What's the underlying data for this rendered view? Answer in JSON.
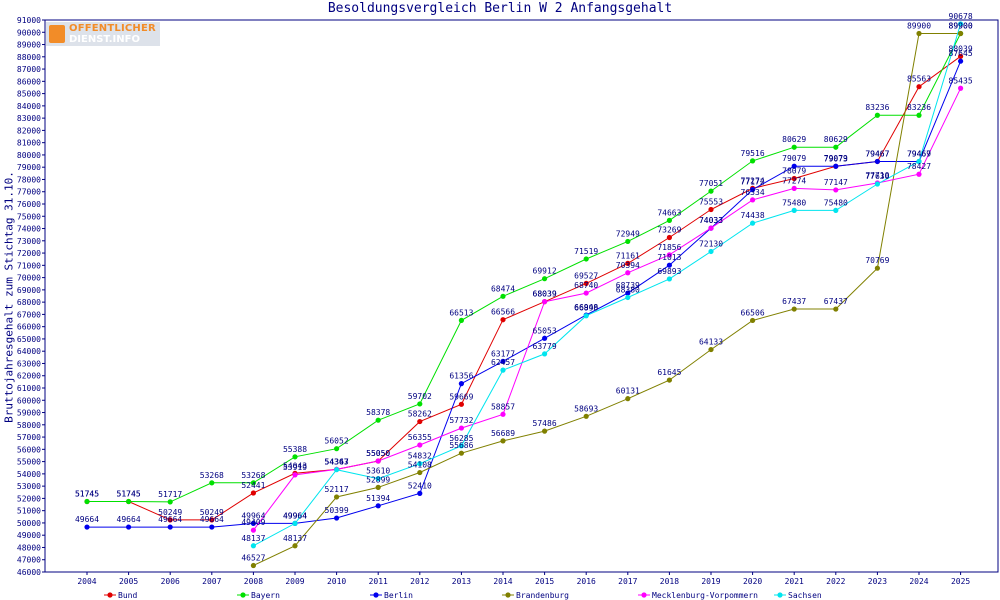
{
  "header": {
    "title": "Besoldungsvergleich Berlin W 2 Anfangsgehalt",
    "logo_line1": "OFFENTLICHER",
    "logo_line2": "DIENST.INFO"
  },
  "chart_data": {
    "type": "line",
    "title": "Besoldungsvergleich Berlin W 2 Anfangsgehalt",
    "xlabel": "",
    "ylabel": "Bruttojahresgehalt zum Stichtag 31.10.",
    "ylim": [
      46000,
      91000
    ],
    "ystep": 1000,
    "grid": false,
    "legend_position": "bottom",
    "categories": [
      "2004",
      "2005",
      "2006",
      "2007",
      "2008",
      "2009",
      "2010",
      "2011",
      "2012",
      "2013",
      "2014",
      "2015",
      "2016",
      "2017",
      "2018",
      "2019",
      "2020",
      "2021",
      "2022",
      "2023",
      "2024",
      "2025"
    ],
    "series": [
      {
        "name": "Bund",
        "color": "#e00000",
        "values": [
          51745,
          51745,
          50249,
          50249,
          52441,
          54043,
          54367,
          55050,
          58262,
          59669,
          66566,
          68039,
          69527,
          71161,
          73269,
          75553,
          77274,
          78079,
          79073,
          79467,
          85563,
          88039
        ]
      },
      {
        "name": "Bayern",
        "color": "#00e000",
        "values": [
          51745,
          51745,
          51717,
          53268,
          53268,
          55388,
          56052,
          58378,
          59702,
          66513,
          68474,
          69912,
          71519,
          72949,
          74663,
          77051,
          79516,
          80629,
          80629,
          83236,
          83236,
          89900
        ]
      },
      {
        "name": "Berlin",
        "color": "#0000ee",
        "values": [
          49664,
          49664,
          49664,
          49664,
          49964,
          49964,
          50399,
          51394,
          52410,
          61356,
          63177,
          65053,
          66948,
          68739,
          71013,
          74033,
          77172,
          79079,
          79079,
          79467,
          79467,
          87645
        ]
      },
      {
        "name": "Brandenburg",
        "color": "#808000",
        "values": [
          null,
          null,
          null,
          null,
          46527,
          48137,
          52117,
          52899,
          54108,
          55686,
          56689,
          57486,
          58693,
          60131,
          61645,
          64133,
          66506,
          67437,
          67437,
          70769,
          89900,
          89900
        ]
      },
      {
        "name": "Mecklenburg-Vorpommern",
        "color": "#ff00ff",
        "values": [
          null,
          null,
          null,
          null,
          49409,
          53919,
          54367,
          55050,
          56355,
          57732,
          58857,
          68039,
          68740,
          70394,
          71856,
          74033,
          76334,
          77274,
          77147,
          77710,
          78427,
          85435
        ]
      },
      {
        "name": "Sachsen",
        "color": "#00e5ee",
        "values": [
          null,
          null,
          null,
          null,
          48137,
          49964,
          54343,
          53610,
          54832,
          56285,
          62457,
          63779,
          66890,
          68380,
          69893,
          72130,
          74438,
          75480,
          75480,
          77630,
          79469,
          90678
        ]
      }
    ]
  }
}
